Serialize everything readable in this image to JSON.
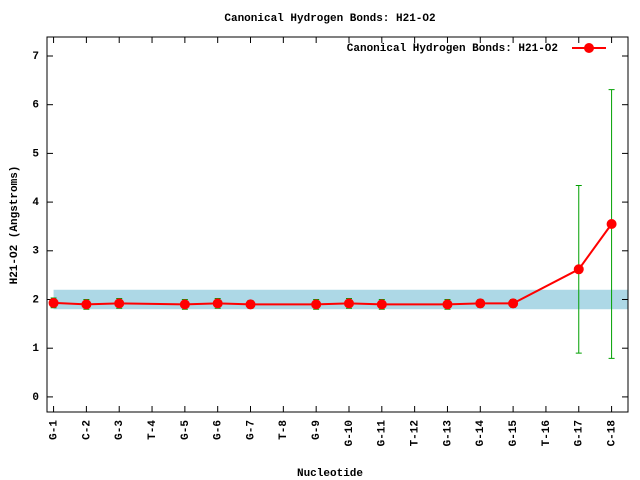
{
  "chart_data": {
    "type": "line",
    "title": "Canonical Hydrogen Bonds: H21-O2",
    "xlabel": "Nucleotide",
    "ylabel": "H21-O2 (Angstroms)",
    "x": [
      1,
      2,
      3,
      5,
      6,
      7,
      9,
      10,
      11,
      13,
      14,
      15,
      17,
      18
    ],
    "series": [
      {
        "name": "Canonical Hydrogen Bonds: H21-O2",
        "color": "#ff0000",
        "error_color": "#00a000",
        "values": [
          1.93,
          1.9,
          1.92,
          1.9,
          1.92,
          1.9,
          1.9,
          1.92,
          1.9,
          1.9,
          1.92,
          1.92,
          2.62,
          3.55
        ],
        "errors": [
          0.1,
          0.1,
          0.1,
          0.1,
          0.1,
          0.08,
          0.1,
          0.1,
          0.1,
          0.1,
          0.08,
          0.08,
          1.72,
          2.76
        ]
      }
    ],
    "band": [
      1.8,
      2.2
    ],
    "band_color": "#add8e6",
    "xlim": [
      0.8,
      18.5
    ],
    "xticks": [
      {
        "value": 1,
        "label": "G-1"
      },
      {
        "value": 2,
        "label": "C-2"
      },
      {
        "value": 3,
        "label": "G-3"
      },
      {
        "value": 4,
        "label": "T-4"
      },
      {
        "value": 5,
        "label": "G-5"
      },
      {
        "value": 6,
        "label": "G-6"
      },
      {
        "value": 7,
        "label": "G-7"
      },
      {
        "value": 8,
        "label": "T-8"
      },
      {
        "value": 9,
        "label": "G-9"
      },
      {
        "value": 10,
        "label": "G-10"
      },
      {
        "value": 11,
        "label": "G-11"
      },
      {
        "value": 12,
        "label": "T-12"
      },
      {
        "value": 13,
        "label": "G-13"
      },
      {
        "value": 14,
        "label": "G-14"
      },
      {
        "value": 15,
        "label": "G-15"
      },
      {
        "value": 16,
        "label": "T-16"
      },
      {
        "value": 17,
        "label": "G-17"
      },
      {
        "value": 18,
        "label": "C-18"
      }
    ],
    "ylim": [
      -0.31,
      7.39
    ],
    "yticks": [
      0,
      1,
      2,
      3,
      4,
      5,
      6,
      7
    ],
    "legend": "top-right"
  }
}
